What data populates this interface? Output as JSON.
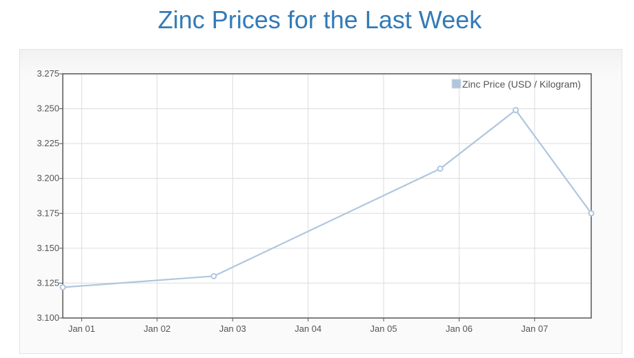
{
  "title": "Zinc Prices for the Last Week",
  "chart_data": {
    "type": "line",
    "title": "Zinc Prices for the Last Week",
    "xlabel": "",
    "ylabel": "",
    "x_ticks": [
      "Jan 01",
      "Jan 02",
      "Jan 03",
      "Jan 04",
      "Jan 05",
      "Jan 06",
      "Jan 07"
    ],
    "x_unit": "days since Jan 01",
    "xlim": [
      -0.25,
      6.75
    ],
    "ylim": [
      3.1,
      3.275
    ],
    "y_ticks": [
      "3.100",
      "3.125",
      "3.150",
      "3.175",
      "3.200",
      "3.225",
      "3.250",
      "3.275"
    ],
    "grid": true,
    "legend_position": "top-right",
    "series": [
      {
        "name": "Zinc Price (USD / Kilogram)",
        "color": "#afc6de",
        "x": [
          -0.25,
          1.75,
          4.75,
          5.75,
          6.75
        ],
        "values": [
          3.122,
          3.13,
          3.207,
          3.249,
          3.175
        ]
      }
    ]
  }
}
